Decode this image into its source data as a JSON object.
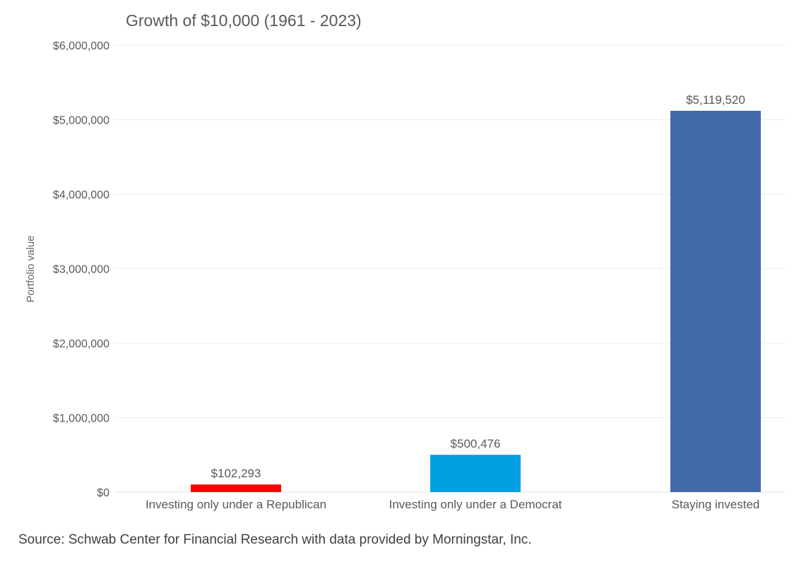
{
  "colors": {
    "republican": "#ff0000",
    "democrat": "#00a0e3",
    "invested": "#426aa8",
    "text": "#595959",
    "gridline": "#eeeeee"
  },
  "source": "Source: Schwab Center for Financial Research with data provided by Morningstar, Inc.",
  "chart_data": {
    "type": "bar",
    "title": "Growth of $10,000 (1961 - 2023)",
    "xlabel": "",
    "ylabel": "Portfolio value",
    "categories": [
      "Investing only under a Republican",
      "Investing only under a Democrat",
      "Staying invested"
    ],
    "values": [
      102293,
      500476,
      5119520
    ],
    "data_labels": [
      "$102,293",
      "$500,476",
      "$5,119,520"
    ],
    "bar_colors": [
      "#ff0000",
      "#00a0e3",
      "#426aa8"
    ],
    "ylim": [
      0,
      6000000
    ],
    "yticks": [
      0,
      1000000,
      2000000,
      3000000,
      4000000,
      5000000,
      6000000
    ],
    "ytick_labels": [
      "$0",
      "$1,000,000",
      "$2,000,000",
      "$3,000,000",
      "$4,000,000",
      "$5,000,000",
      "$6,000,000"
    ],
    "grid": true,
    "legend": "none"
  }
}
